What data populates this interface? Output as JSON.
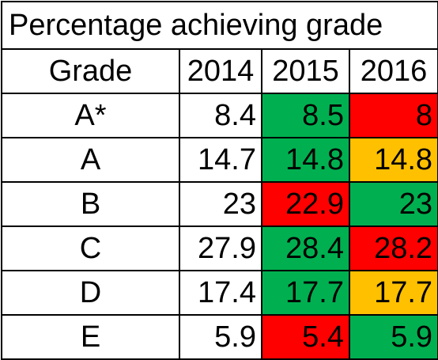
{
  "chart_data": {
    "type": "table",
    "title": "Percentage achieving grade",
    "header": [
      "Grade",
      "2014",
      "2015",
      "2016"
    ],
    "rows": [
      {
        "grade": "A*",
        "cells": [
          {
            "value": "8.4",
            "fill": "#ffffff"
          },
          {
            "value": "8.5",
            "fill": "#00b050"
          },
          {
            "value": "8",
            "fill": "#ff0000"
          }
        ]
      },
      {
        "grade": "A",
        "cells": [
          {
            "value": "14.7",
            "fill": "#ffffff"
          },
          {
            "value": "14.8",
            "fill": "#00b050"
          },
          {
            "value": "14.8",
            "fill": "#ffc000"
          }
        ]
      },
      {
        "grade": "B",
        "cells": [
          {
            "value": "23",
            "fill": "#ffffff"
          },
          {
            "value": "22.9",
            "fill": "#ff0000"
          },
          {
            "value": "23",
            "fill": "#00b050"
          }
        ]
      },
      {
        "grade": "C",
        "cells": [
          {
            "value": "27.9",
            "fill": "#ffffff"
          },
          {
            "value": "28.4",
            "fill": "#00b050"
          },
          {
            "value": "28.2",
            "fill": "#ff0000"
          }
        ]
      },
      {
        "grade": "D",
        "cells": [
          {
            "value": "17.4",
            "fill": "#ffffff"
          },
          {
            "value": "17.7",
            "fill": "#00b050"
          },
          {
            "value": "17.7",
            "fill": "#ffc000"
          }
        ]
      },
      {
        "grade": "E",
        "cells": [
          {
            "value": "5.9",
            "fill": "#ffffff"
          },
          {
            "value": "5.4",
            "fill": "#ff0000"
          },
          {
            "value": "5.9",
            "fill": "#00b050"
          }
        ]
      }
    ]
  }
}
